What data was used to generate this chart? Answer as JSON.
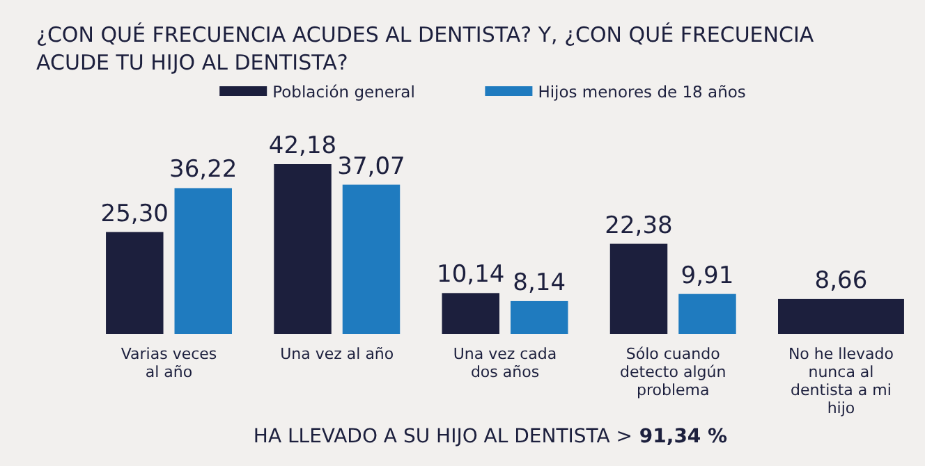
{
  "chart_data": {
    "type": "bar",
    "title": "¿CON QUÉ FRECUENCIA ACUDES AL DENTISTA? Y, ¿CON QUÉ FRECUENCIA ACUDE TU HIJO AL DENTISTA?",
    "categories": [
      "Varias veces al año",
      "Una vez al año",
      "Una vez cada dos años",
      "Sólo cuando detecto algún problema",
      "No he llevado nunca al dentista a mi hijo"
    ],
    "series": [
      {
        "name": "Población general",
        "color": "#1c1f3d",
        "values": [
          25.3,
          42.18,
          10.14,
          22.38,
          null
        ],
        "value_labels": [
          "25,30",
          "42,18",
          "10,14",
          "22,38",
          null
        ]
      },
      {
        "name": "Hijos menores de 18 años",
        "color": "#1f7bbf",
        "colors": [
          "#1f7bbf",
          "#1f7bbf",
          "#1f7bbf",
          "#1f7bbf",
          "#1c1f3d"
        ],
        "values": [
          36.22,
          37.07,
          8.14,
          9.91,
          8.66
        ],
        "value_labels": [
          "36,22",
          "37,07",
          "8,14",
          "9,91",
          "8,66"
        ]
      }
    ],
    "legend": "top",
    "annotations": [
      "HA LLEVADO A SU HIJO AL DENTISTA > 91,34 %"
    ]
  }
}
